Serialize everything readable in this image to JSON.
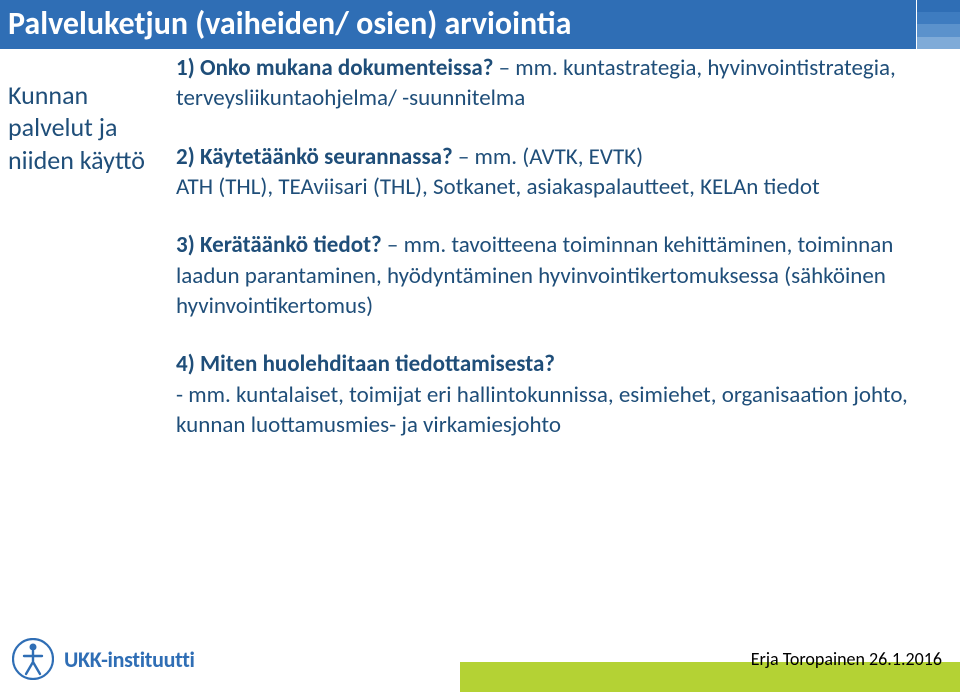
{
  "colors": {
    "brand_blue": "#2F6EB5",
    "brand_blue_dark": "#1F4E79",
    "accent_green": "#B4D234",
    "title_bar_shades": [
      "#2F6EB5",
      "#3E7CC0",
      "#5B92CC",
      "#7FABD8"
    ],
    "text_default": "#333333",
    "white": "#FFFFFF"
  },
  "title": "Palveluketjun (vaiheiden/ osien) arviointia",
  "left_label": "Kunnan palvelut ja niiden käyttö",
  "questions": [
    {
      "lead_bold": "1) Onko mukana dokumenteissa?",
      "lead_tail": " – mm. kuntastrategia, hyvinvointistrategia, terveysliikuntaohjelma/ -suunnitelma",
      "detail": ""
    },
    {
      "lead_bold": "2) Käytetäänkö seurannassa?",
      "lead_tail": " – mm. (AVTK, EVTK)",
      "detail": "ATH (THL), TEAviisari (THL), Sotkanet, asiakaspalautteet, KELAn tiedot"
    },
    {
      "lead_bold": "3) Kerätäänkö tiedot?",
      "lead_tail": " – mm. tavoitteena toiminnan kehittäminen, toiminnan laadun parantaminen, hyödyntäminen hyvinvointikertomuksessa (sähköinen hyvinvointikertomus)",
      "detail": ""
    },
    {
      "lead_bold": "4) Miten huolehditaan tiedottamisesta?",
      "lead_tail": "",
      "detail": "- mm. kuntalaiset, toimijat eri hallintokunnissa, esimiehet, organisaation johto, kunnan luottamusmies- ja virkamiesjohto"
    }
  ],
  "logo_text": "UKK-instituutti",
  "footer_date": "Erja Toropainen 26.1.2016"
}
